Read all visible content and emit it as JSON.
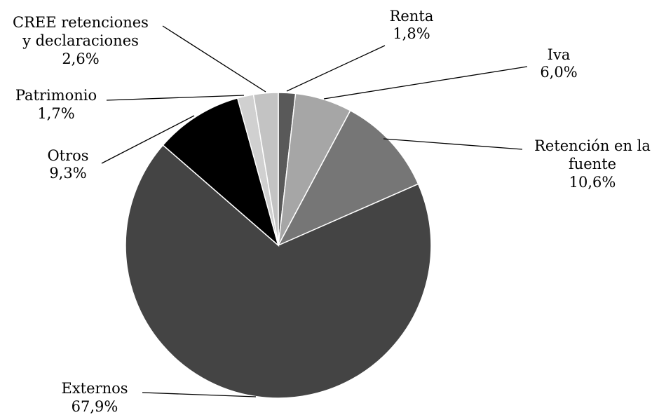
{
  "chart_data": {
    "type": "pie",
    "title": "",
    "series": [
      {
        "name": "Renta",
        "value": 1.8,
        "label_lines": [
          "Renta",
          "1,8%"
        ],
        "color": "#595959"
      },
      {
        "name": "Iva",
        "value": 6.0,
        "label_lines": [
          "Iva",
          "6,0%"
        ],
        "color": "#a6a6a6"
      },
      {
        "name": "Retención en la fuente",
        "value": 10.6,
        "label_lines": [
          "Retención en la",
          "fuente",
          "10,6%"
        ],
        "color": "#767676"
      },
      {
        "name": "Externos",
        "value": 67.9,
        "label_lines": [
          "Externos",
          "67,9%"
        ],
        "color": "#444444"
      },
      {
        "name": "Otros",
        "value": 9.3,
        "label_lines": [
          "Otros",
          "9,3%"
        ],
        "color": "#000000"
      },
      {
        "name": "Patrimonio",
        "value": 1.7,
        "label_lines": [
          "Patrimonio",
          "1,7%"
        ],
        "color": "#d0d0d0"
      },
      {
        "name": "CREE retenciones y declaraciones",
        "value": 2.6,
        "label_lines": [
          "CREE retenciones",
          "y declaraciones",
          "2,6%"
        ],
        "color": "#c3c3c3"
      }
    ],
    "start": "12 o'clock",
    "direction": "clockwise",
    "legend": "none",
    "labels": "outside with leader lines"
  }
}
